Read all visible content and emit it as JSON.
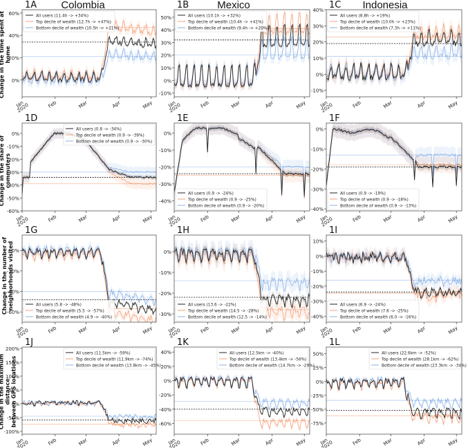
{
  "columns": [
    "Colombia",
    "Mexico",
    "Indonesia"
  ],
  "row_labels": [
    "Change in the time spent at home",
    "Change in the share of commuters",
    "Change in the number of\nneighborhoods visited",
    "Change in the maximum distance\nbetween GPS locations"
  ],
  "x_ticks": [
    "Jan\n2020",
    "Feb",
    "Mar",
    "Apr",
    "May"
  ],
  "series_colors": {
    "all": "#222222",
    "top": "#f08a5a",
    "bottom": "#6f9fe0"
  },
  "chart_data": [
    {
      "panel": "1A",
      "type": "line",
      "country": "Colombia",
      "ylabel": "Change in the time spent at home",
      "ylim": [
        -15,
        63
      ],
      "yticks": [
        0,
        20,
        40,
        60
      ],
      "legend_pos": "top-left",
      "legend": [
        "All users (11.4h -> +34%)",
        "Top decile of wealth (12.7h -> +47%)",
        "Bottom decile of wealth (10.5h -> +21%)"
      ],
      "ref": {
        "all": 34,
        "top": 47,
        "bottom": 21
      },
      "pre": {
        "all": 0,
        "top": 2,
        "bottom": -2
      },
      "weekly": 6,
      "post": {
        "all": 34,
        "top": 47,
        "bottom": 21
      },
      "shift_day": 80,
      "drift": -0.08,
      "noise": 2
    },
    {
      "panel": "1B",
      "type": "line",
      "country": "Mexico",
      "ylim": [
        -13,
        56
      ],
      "yticks": [
        -10,
        0,
        10,
        20,
        30,
        40,
        50
      ],
      "legend_pos": "top-left",
      "legend": [
        "All users (10.1h -> +32%)",
        "Top decile of wealth (10.4h -> +41%)",
        "Bottom decile of wealth (9.4h -> +20%)"
      ],
      "ref": {
        "all": 32,
        "top": 41,
        "bottom": 20
      },
      "pre": {
        "all": -4,
        "top": -4,
        "bottom": -3
      },
      "weekly": 15,
      "post": {
        "all": 28,
        "top": 38,
        "bottom": 18
      },
      "shift_day": 80,
      "drift": 0,
      "noise": 1.5
    },
    {
      "panel": "1C",
      "type": "line",
      "country": "Indonesia",
      "ylim": [
        -14,
        40
      ],
      "yticks": [
        -10,
        0,
        10,
        20,
        30,
        40
      ],
      "legend_pos": "top-left",
      "legend": [
        "All users (8.8h -> +19%)",
        "Top decile of wealth (10.0h -> +23%)",
        "Bottom decile of wealth (7.3h -> +11%)"
      ],
      "ref": {
        "all": 19,
        "top": 23,
        "bottom": 11
      },
      "pre": {
        "all": -2,
        "top": -1,
        "bottom": -2
      },
      "weekly": 7,
      "post": {
        "all": 19,
        "top": 23,
        "bottom": 11
      },
      "shift_day": 80,
      "drift": 0,
      "noise": 2
    },
    {
      "panel": "1D",
      "type": "line",
      "country": "Colombia",
      "ylabel": "Change in the share of commuters",
      "ylim": [
        -60,
        8
      ],
      "yticks": [
        -60,
        -50,
        -40,
        -30,
        -20,
        -10,
        0
      ],
      "legend_pos": "top-right",
      "legend": [
        "All users (0.8 -> -34%)",
        "Top decile of wealth (0.9 -> -39%)",
        "Bottom decile of wealth (0.9 -> -30%)"
      ],
      "ref": {
        "all": -34,
        "top": -39,
        "bottom": -30
      },
      "shape": "commute_co"
    },
    {
      "panel": "1E",
      "type": "line",
      "country": "Mexico",
      "ylim": [
        -46,
        6
      ],
      "yticks": [
        -40,
        -30,
        -20,
        -10,
        0
      ],
      "legend_pos": "bottom-left",
      "legend": [
        "All users (0.9 -> -24%)",
        "Top decile of wealth (0.9 -> -25%)",
        "Bottom decile of wealth (0.9 -> -20%)"
      ],
      "ref": {
        "all": -24,
        "top": -25,
        "bottom": -20
      },
      "shape": "commute_mx"
    },
    {
      "panel": "1F",
      "type": "line",
      "country": "Indonesia",
      "ylim": [
        -41,
        3
      ],
      "yticks": [
        -40,
        -30,
        -20,
        -10,
        0
      ],
      "legend_pos": "bottom-left",
      "legend": [
        "All users (0.9 -> -19%)",
        "Top decile of wealth (0.9 -> -18%)",
        "Bottom decile of wealth (0.9 -> -13%)"
      ],
      "ref": {
        "all": -19,
        "top": -18,
        "bottom": -13
      },
      "shape": "commute_id"
    },
    {
      "panel": "1G",
      "type": "line",
      "country": "Colombia",
      "ylabel": "Change in the number of neighborhoods visited",
      "ylim": [
        -70,
        15
      ],
      "yticks": [
        -60,
        -40,
        -20,
        0
      ],
      "legend_pos": "bottom-left",
      "legend": [
        "All users (5.8 -> -48%)",
        "Top decile of wealth (5.5 -> -57%)",
        "Bottom decile of wealth (4.9 -> -40%)"
      ],
      "ref": {
        "all": -48,
        "top": -57,
        "bottom": -40
      },
      "pre": {
        "all": 0,
        "top": -2,
        "bottom": 2
      },
      "weekly": -6,
      "post": {
        "all": -48,
        "top": -57,
        "bottom": -40
      },
      "shift_day": 80,
      "drift": 0.12,
      "noise": 2.5
    },
    {
      "panel": "1H",
      "type": "line",
      "country": "Mexico",
      "ylim": [
        -34,
        8
      ],
      "yticks": [
        -30,
        -20,
        -10,
        0
      ],
      "legend_pos": "bottom-left",
      "legend": [
        "All users (13.6 -> -22%)",
        "Top decile of wealth (14.5 -> -28%)",
        "Bottom decile of wealth (12.5 -> -14%)"
      ],
      "ref": {
        "all": -22,
        "top": -28,
        "bottom": -14
      },
      "pre": {
        "all": 0,
        "top": -1,
        "bottom": 1
      },
      "weekly": -4,
      "post": {
        "all": -22,
        "top": -28,
        "bottom": -14
      },
      "shift_day": 80,
      "drift": 0,
      "noise": 1.5
    },
    {
      "panel": "1I",
      "type": "line",
      "country": "Indonesia",
      "ylim": [
        -44,
        14
      ],
      "yticks": [
        -40,
        -30,
        -20,
        -10,
        0,
        10
      ],
      "legend_pos": "bottom-left",
      "legend": [
        "All users (6.9 -> -24%)",
        "Top decile of wealth (7.6 -> -25%)",
        "Bottom decile of wealth (6.0 -> -16%)"
      ],
      "ref": {
        "all": -24,
        "top": -25,
        "bottom": -16
      },
      "pre": {
        "all": 0,
        "top": 0,
        "bottom": 0
      },
      "weekly": -2,
      "post": {
        "all": -24,
        "top": -25,
        "bottom": -16
      },
      "shift_day": 80,
      "drift": 0,
      "noise": 3
    },
    {
      "panel": "1J",
      "type": "line",
      "country": "Colombia",
      "ylabel": "Change in the maximum distance between GPS locations",
      "ylim": [
        -110,
        205
      ],
      "yticks": [
        -100,
        -50,
        0,
        50,
        100,
        150,
        200
      ],
      "legend_pos": "top-right",
      "legend": [
        "All users (11.5km -> -59%)",
        "Top decile of wealth (11.9km -> -74%)",
        "Bottom decile of wealth (13.8km -> -45%)"
      ],
      "ref": {
        "all": -59,
        "top": -74,
        "bottom": -45
      },
      "pre": {
        "all": 5,
        "top": 3,
        "bottom": 4
      },
      "weekly": -6,
      "post": {
        "all": -59,
        "top": -74,
        "bottom": -45
      },
      "shift_day": 80,
      "drift": 0,
      "noise": 8
    },
    {
      "panel": "1K",
      "type": "line",
      "country": "Mexico",
      "ylim": [
        -75,
        47
      ],
      "yticks": [
        -60,
        -40,
        -20,
        0,
        20,
        40
      ],
      "legend_pos": "top-right",
      "legend": [
        "All users (12.5km -> -40%)",
        "Top decile of wealth (13.4km -> -56%)",
        "Bottom decile of wealth (14.7km -> -29%)"
      ],
      "ref": {
        "all": -40,
        "top": -56,
        "bottom": -29
      },
      "pre": {
        "all": 2,
        "top": 2,
        "bottom": 4
      },
      "weekly": -10,
      "post": {
        "all": -40,
        "top": -56,
        "bottom": -29
      },
      "shift_day": 78,
      "drift": 0,
      "noise": 3
    },
    {
      "panel": "1L",
      "type": "line",
      "country": "Indonesia",
      "ylim": [
        -95,
        62
      ],
      "yticks": [
        -75,
        -50,
        -25,
        0,
        25,
        50
      ],
      "legend_pos": "top-right",
      "legend": [
        "All users (22.6km -> -52%)",
        "Top decile of wealth (28.1km -> -62%)",
        "Bottom decile of wealth (23.3km -> -34%)"
      ],
      "ref": {
        "all": -52,
        "top": -62,
        "bottom": -34
      },
      "pre": {
        "all": 2,
        "top": 0,
        "bottom": 4
      },
      "weekly": -12,
      "post": {
        "all": -52,
        "top": -62,
        "bottom": -34
      },
      "shift_day": 78,
      "drift": 0,
      "noise": 5
    }
  ]
}
